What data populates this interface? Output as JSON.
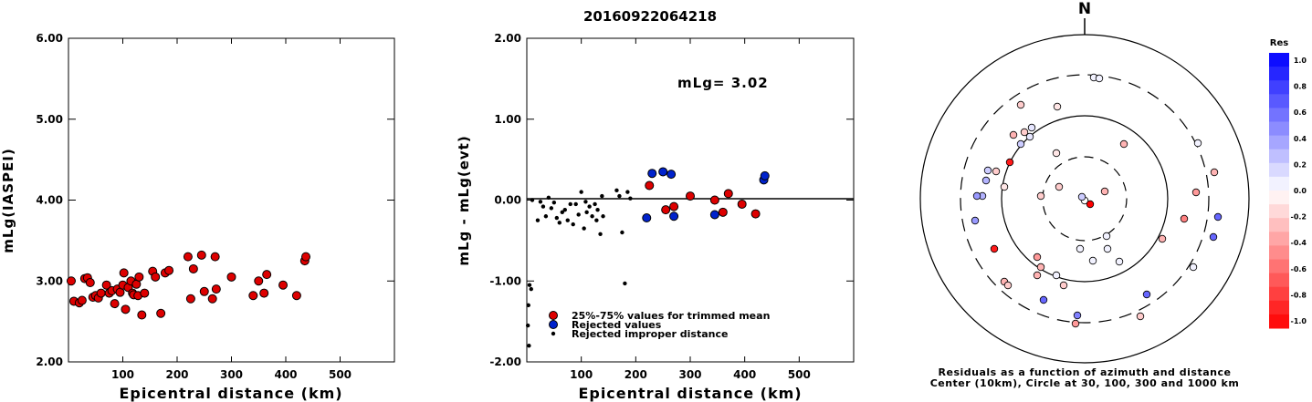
{
  "title": "20160922064218",
  "chart_data": [
    {
      "type": "scatter",
      "name": "left",
      "xlabel": "Epicentral distance (km)",
      "ylabel": "mLg(IASPEI)",
      "xlim": [
        0,
        600
      ],
      "ylim": [
        2.0,
        6.0
      ],
      "xticks": [
        "100",
        "200",
        "300",
        "400",
        "500"
      ],
      "yticks": [
        "2.00",
        "3.00",
        "4.00",
        "5.00",
        "6.00"
      ],
      "points": [
        [
          5,
          3.0
        ],
        [
          10,
          2.75
        ],
        [
          20,
          2.73
        ],
        [
          25,
          2.76
        ],
        [
          30,
          3.03
        ],
        [
          35,
          3.04
        ],
        [
          40,
          2.98
        ],
        [
          45,
          2.8
        ],
        [
          50,
          2.82
        ],
        [
          55,
          2.79
        ],
        [
          60,
          2.85
        ],
        [
          70,
          2.95
        ],
        [
          75,
          2.85
        ],
        [
          80,
          2.88
        ],
        [
          85,
          2.72
        ],
        [
          90,
          2.9
        ],
        [
          95,
          2.86
        ],
        [
          100,
          2.95
        ],
        [
          102,
          3.1
        ],
        [
          105,
          2.65
        ],
        [
          110,
          2.92
        ],
        [
          115,
          3.0
        ],
        [
          118,
          2.85
        ],
        [
          120,
          2.83
        ],
        [
          125,
          2.96
        ],
        [
          128,
          2.82
        ],
        [
          130,
          3.05
        ],
        [
          135,
          2.58
        ],
        [
          140,
          2.85
        ],
        [
          155,
          3.12
        ],
        [
          160,
          3.05
        ],
        [
          170,
          2.6
        ],
        [
          178,
          3.1
        ],
        [
          185,
          3.13
        ],
        [
          220,
          3.3
        ],
        [
          225,
          2.78
        ],
        [
          230,
          3.15
        ],
        [
          245,
          3.32
        ],
        [
          250,
          2.87
        ],
        [
          265,
          2.78
        ],
        [
          270,
          3.3
        ],
        [
          272,
          2.9
        ],
        [
          300,
          3.05
        ],
        [
          340,
          2.82
        ],
        [
          350,
          3.0
        ],
        [
          360,
          2.85
        ],
        [
          365,
          3.08
        ],
        [
          395,
          2.95
        ],
        [
          420,
          2.82
        ],
        [
          435,
          3.25
        ],
        [
          437,
          3.3
        ]
      ]
    },
    {
      "type": "scatter",
      "name": "middle",
      "xlabel": "Epicentral distance (km)",
      "ylabel": "mLg - mLg(evt)",
      "annotation": "mLg= 3.02",
      "xlim": [
        0,
        600
      ],
      "ylim": [
        -2.0,
        2.0
      ],
      "xticks": [
        "100",
        "200",
        "300",
        "400",
        "500"
      ],
      "yticks": [
        "-2.00",
        "-1.00",
        "0.00",
        "1.00",
        "2.00"
      ],
      "series": [
        {
          "name": "25%-75% values for trimmed mean",
          "color": "#dd0000",
          "points": [
            [
              225,
              0.18
            ],
            [
              255,
              -0.12
            ],
            [
              270,
              -0.08
            ],
            [
              300,
              0.05
            ],
            [
              345,
              0.0
            ],
            [
              360,
              -0.15
            ],
            [
              370,
              0.08
            ],
            [
              395,
              -0.05
            ],
            [
              420,
              -0.17
            ]
          ]
        },
        {
          "name": "Rejected values",
          "color": "#0022cc",
          "points": [
            [
              220,
              -0.22
            ],
            [
              230,
              0.33
            ],
            [
              250,
              0.35
            ],
            [
              265,
              0.32
            ],
            [
              270,
              -0.2
            ],
            [
              345,
              -0.18
            ],
            [
              435,
              0.25
            ],
            [
              437,
              0.3
            ]
          ]
        },
        {
          "name": "Rejected improper distance",
          "color": "#000000",
          "points": [
            [
              5,
              -1.05
            ],
            [
              8,
              -1.1
            ],
            [
              3,
              -1.3
            ],
            [
              2,
              -1.55
            ],
            [
              4,
              -1.8
            ],
            [
              10,
              0.0
            ],
            [
              20,
              -0.25
            ],
            [
              25,
              -0.02
            ],
            [
              30,
              -0.08
            ],
            [
              35,
              -0.2
            ],
            [
              40,
              0.03
            ],
            [
              45,
              -0.1
            ],
            [
              50,
              -0.03
            ],
            [
              55,
              -0.22
            ],
            [
              60,
              -0.28
            ],
            [
              65,
              -0.15
            ],
            [
              70,
              -0.12
            ],
            [
              75,
              -0.25
            ],
            [
              80,
              -0.05
            ],
            [
              85,
              -0.3
            ],
            [
              90,
              -0.05
            ],
            [
              95,
              -0.18
            ],
            [
              100,
              0.1
            ],
            [
              105,
              -0.35
            ],
            [
              108,
              -0.02
            ],
            [
              110,
              -0.15
            ],
            [
              115,
              -0.08
            ],
            [
              120,
              -0.2
            ],
            [
              125,
              -0.05
            ],
            [
              128,
              -0.25
            ],
            [
              130,
              -0.12
            ],
            [
              135,
              -0.42
            ],
            [
              138,
              0.05
            ],
            [
              140,
              -0.2
            ],
            [
              165,
              0.12
            ],
            [
              170,
              0.05
            ],
            [
              175,
              -0.4
            ],
            [
              180,
              -1.03
            ],
            [
              185,
              0.1
            ],
            [
              190,
              0.02
            ]
          ]
        }
      ]
    },
    {
      "type": "scatter",
      "name": "polar",
      "north_label": "N",
      "caption1": "Residuals as a function of azimuth and distance",
      "caption2": "Center (10km), Circle at 30, 100, 300 and 1000 km",
      "points": [
        {
          "x": 1188,
          "y": 220,
          "r": 0
        },
        {
          "x": 1194,
          "y": 224,
          "r": -1.0
        },
        {
          "x": 1185,
          "y": 216,
          "r": 0.2
        },
        {
          "x": 1210,
          "y": 210,
          "r": -0.3
        },
        {
          "x": 1140,
          "y": 215,
          "r": -0.2
        },
        {
          "x": 1198,
          "y": 85,
          "r": 0.05
        },
        {
          "x": 1204,
          "y": 86,
          "r": 0.05
        },
        {
          "x": 1118,
          "y": 115,
          "r": -0.2
        },
        {
          "x": 1158,
          "y": 117,
          "r": -0.1
        },
        {
          "x": 1130,
          "y": 140,
          "r": 0.1
        },
        {
          "x": 1122,
          "y": 145,
          "r": -0.2
        },
        {
          "x": 1128,
          "y": 150,
          "r": 0.1
        },
        {
          "x": 1118,
          "y": 158,
          "r": 0.2
        },
        {
          "x": 1110,
          "y": 148,
          "r": -0.3
        },
        {
          "x": 1106,
          "y": 178,
          "r": -0.9
        },
        {
          "x": 1157,
          "y": 168,
          "r": -0.1
        },
        {
          "x": 1231,
          "y": 158,
          "r": -0.3
        },
        {
          "x": 1312,
          "y": 157,
          "r": 0.05
        },
        {
          "x": 1082,
          "y": 187,
          "r": 0.2
        },
        {
          "x": 1091,
          "y": 188,
          "r": -0.2
        },
        {
          "x": 1080,
          "y": 198,
          "r": 0.3
        },
        {
          "x": 1100,
          "y": 205,
          "r": -0.1
        },
        {
          "x": 1076,
          "y": 215,
          "r": 0.3
        },
        {
          "x": 1070,
          "y": 215,
          "r": 0.4
        },
        {
          "x": 1160,
          "y": 205,
          "r": -0.2
        },
        {
          "x": 1330,
          "y": 189,
          "r": -0.3
        },
        {
          "x": 1310,
          "y": 211,
          "r": -0.4
        },
        {
          "x": 1297,
          "y": 240,
          "r": -0.5
        },
        {
          "x": 1334,
          "y": 238,
          "r": 0.6
        },
        {
          "x": 1329,
          "y": 260,
          "r": 0.6
        },
        {
          "x": 1068,
          "y": 242,
          "r": 0.4
        },
        {
          "x": 1273,
          "y": 262,
          "r": -0.3
        },
        {
          "x": 1212,
          "y": 259,
          "r": 0.05
        },
        {
          "x": 1213,
          "y": 273,
          "r": 0.05
        },
        {
          "x": 1183,
          "y": 273,
          "r": 0.05
        },
        {
          "x": 1197,
          "y": 286,
          "r": 0.05
        },
        {
          "x": 1226,
          "y": 287,
          "r": 0.05
        },
        {
          "x": 1089,
          "y": 273,
          "r": -0.9
        },
        {
          "x": 1136,
          "y": 282,
          "r": -0.4
        },
        {
          "x": 1140,
          "y": 293,
          "r": -0.3
        },
        {
          "x": 1136,
          "y": 302,
          "r": -0.3
        },
        {
          "x": 1157,
          "y": 302,
          "r": 0.05
        },
        {
          "x": 1307,
          "y": 293,
          "r": 0.05
        },
        {
          "x": 1100,
          "y": 309,
          "r": -0.3
        },
        {
          "x": 1104,
          "y": 313,
          "r": -0.2
        },
        {
          "x": 1165,
          "y": 313,
          "r": -0.2
        },
        {
          "x": 1256,
          "y": 323,
          "r": 0.6
        },
        {
          "x": 1143,
          "y": 329,
          "r": 0.6
        },
        {
          "x": 1249,
          "y": 347,
          "r": -0.2
        },
        {
          "x": 1180,
          "y": 346,
          "r": 0.5
        },
        {
          "x": 1178,
          "y": 355,
          "r": -0.4
        }
      ]
    }
  ],
  "colorbar": {
    "title": "Res",
    "ticks": [
      "1.0",
      "0.8",
      "0.6",
      "0.4",
      "0.2",
      "0.0",
      "-0.2",
      "-0.4",
      "-0.6",
      "-0.8",
      "-1.0"
    ]
  }
}
